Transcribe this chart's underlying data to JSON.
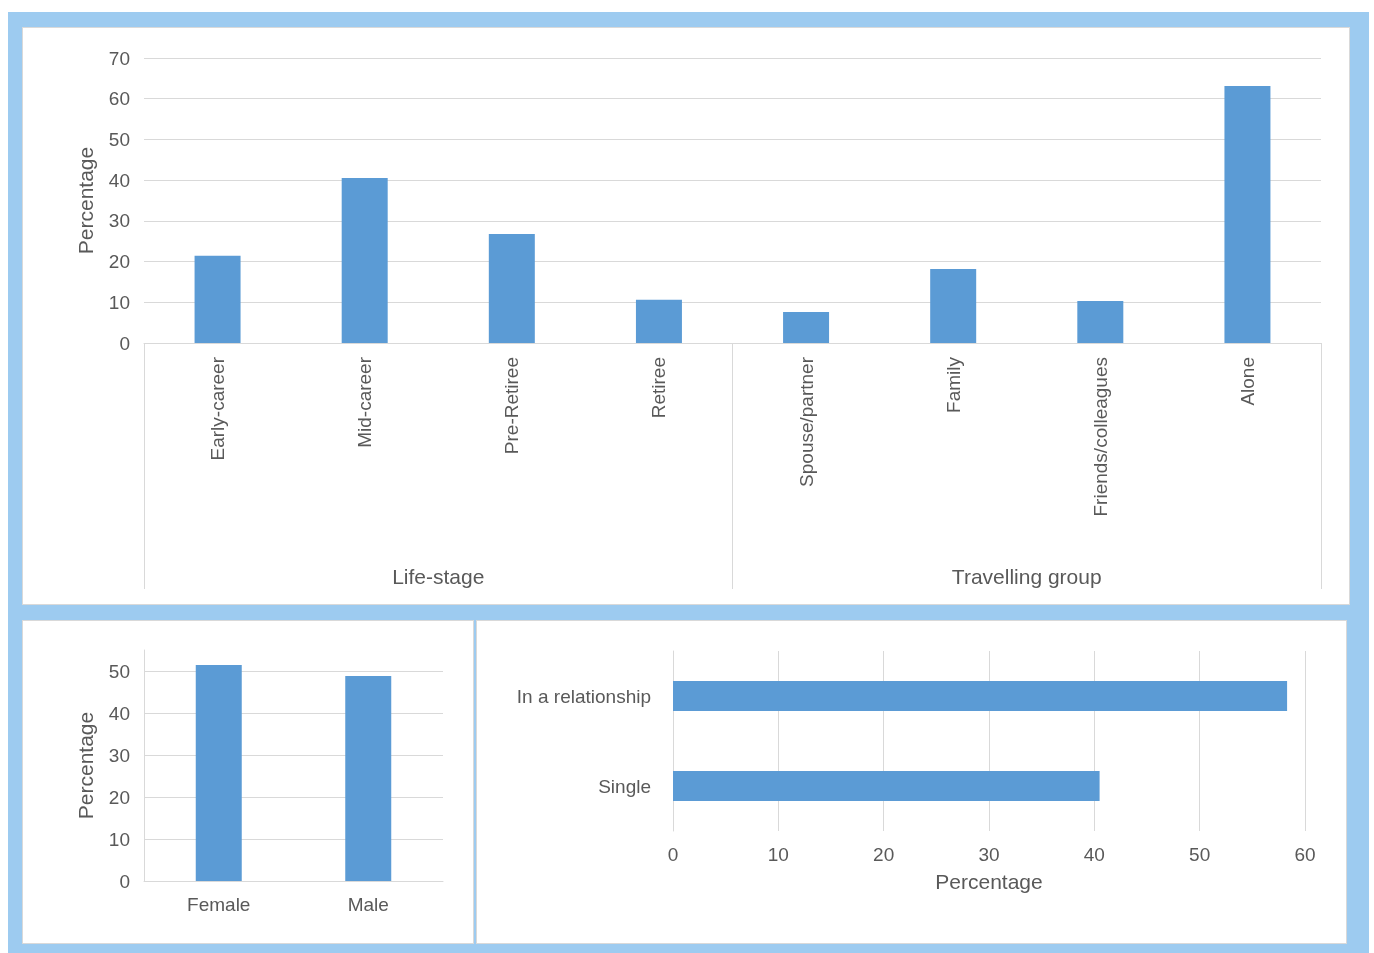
{
  "chart_data": [
    {
      "type": "bar",
      "categories": [
        "Early-career",
        "Mid-career",
        "Pre-Retiree",
        "Retiree",
        "Spouse/partner",
        "Family",
        "Friends/colleagues",
        "Alone"
      ],
      "values": [
        21.4,
        40.5,
        26.8,
        10.6,
        7.6,
        18.2,
        10.3,
        63.1
      ],
      "color": "#5b9bd5",
      "ylabel": "Percentage",
      "ylim": [
        0,
        70
      ],
      "yticks": [
        0,
        10,
        20,
        30,
        40,
        50,
        60,
        70
      ],
      "grid": "y",
      "annotations": [
        "Life-stage",
        "Travelling group"
      ]
    },
    {
      "type": "bar",
      "categories": [
        "Female",
        "Male"
      ],
      "values": [
        51.4,
        48.8
      ],
      "color": "#5b9bd5",
      "ylabel": "Percentage",
      "ylim": [
        0,
        55
      ],
      "yticks": [
        0,
        10,
        20,
        30,
        40,
        50
      ],
      "grid": "y"
    },
    {
      "type": "bar",
      "orientation": "horizontal",
      "categories": [
        "In a relationship",
        "Single"
      ],
      "values": [
        58.3,
        40.5
      ],
      "color": "#5b9bd5",
      "xlabel": "Percentage",
      "xlim": [
        0,
        60
      ],
      "xticks": [
        0,
        10,
        20,
        30,
        40,
        50,
        60
      ],
      "grid": "x"
    }
  ]
}
